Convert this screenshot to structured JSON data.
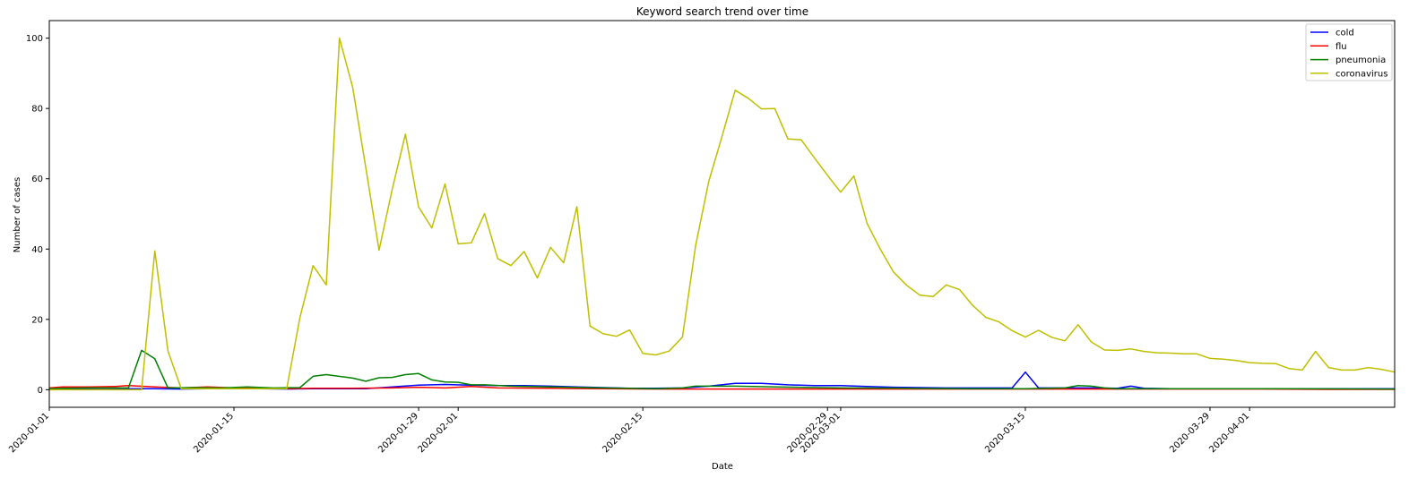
{
  "chart_data": {
    "type": "line",
    "title": "Keyword search trend over time",
    "xlabel": "Date",
    "ylabel": "Number of cases",
    "xlim": [
      "2020-01-01",
      "2020-04-12"
    ],
    "ylim": [
      -5,
      105
    ],
    "yticks": [
      0,
      20,
      40,
      60,
      80,
      100
    ],
    "xticks": [
      "2020-01-01",
      "2020-01-15",
      "2020-01-29",
      "2020-02-01",
      "2020-02-15",
      "2020-02-29",
      "2020-03-01",
      "2020-03-15",
      "2020-03-29",
      "2020-04-01"
    ],
    "grid": false,
    "legend_position": "top-right",
    "series": [
      {
        "name": "cold",
        "color": "#0000ff",
        "x": [
          "2020-01-01",
          "2020-01-03",
          "2020-01-05",
          "2020-01-07",
          "2020-01-09",
          "2020-01-11",
          "2020-01-13",
          "2020-01-15",
          "2020-01-17",
          "2020-01-19",
          "2020-01-21",
          "2020-01-23",
          "2020-01-25",
          "2020-01-27",
          "2020-01-29",
          "2020-01-31",
          "2020-02-02",
          "2020-02-04",
          "2020-02-06",
          "2020-02-08",
          "2020-02-10",
          "2020-02-12",
          "2020-02-14",
          "2020-02-16",
          "2020-02-18",
          "2020-02-20",
          "2020-02-22",
          "2020-02-24",
          "2020-02-26",
          "2020-02-28",
          "2020-03-01",
          "2020-03-03",
          "2020-03-05",
          "2020-03-07",
          "2020-03-09",
          "2020-03-11",
          "2020-03-13",
          "2020-03-14",
          "2020-03-15",
          "2020-03-16",
          "2020-03-18",
          "2020-03-20",
          "2020-03-22",
          "2020-03-23",
          "2020-03-24",
          "2020-03-26",
          "2020-03-28",
          "2020-03-30",
          "2020-04-01",
          "2020-04-03",
          "2020-04-05",
          "2020-04-07",
          "2020-04-09",
          "2020-04-12"
        ],
        "y": [
          0.3,
          0.3,
          0.4,
          0.3,
          0.3,
          0.2,
          0.3,
          0.3,
          0.3,
          0.2,
          0.3,
          0.3,
          0.3,
          0.8,
          1.3,
          1.5,
          1.3,
          1.2,
          1.2,
          1.0,
          0.8,
          0.6,
          0.4,
          0.4,
          0.5,
          1.0,
          1.8,
          1.8,
          1.4,
          1.2,
          1.2,
          0.9,
          0.7,
          0.6,
          0.5,
          0.5,
          0.5,
          0.5,
          5.0,
          0.5,
          0.5,
          0.5,
          0.4,
          1.0,
          0.4,
          0.3,
          0.3,
          0.3,
          0.3,
          0.3,
          0.3,
          0.3,
          0.3,
          0.3
        ]
      },
      {
        "name": "flu",
        "color": "#ff0000",
        "x": [
          "2020-01-01",
          "2020-01-02",
          "2020-01-04",
          "2020-01-06",
          "2020-01-07",
          "2020-01-09",
          "2020-01-11",
          "2020-01-13",
          "2020-01-15",
          "2020-01-17",
          "2020-01-19",
          "2020-01-21",
          "2020-01-24",
          "2020-01-27",
          "2020-01-29",
          "2020-01-31",
          "2020-02-02",
          "2020-02-04",
          "2020-02-08",
          "2020-02-12",
          "2020-02-16",
          "2020-02-20",
          "2020-02-24",
          "2020-02-28",
          "2020-03-03",
          "2020-03-08",
          "2020-03-13",
          "2020-03-18",
          "2020-03-23",
          "2020-03-28",
          "2020-04-02",
          "2020-04-07",
          "2020-04-12"
        ],
        "y": [
          0.5,
          0.8,
          0.8,
          0.9,
          1.2,
          0.8,
          0.5,
          0.8,
          0.5,
          0.4,
          0.3,
          0.4,
          0.4,
          0.5,
          0.7,
          0.5,
          0.9,
          0.5,
          0.4,
          0.3,
          0.2,
          0.2,
          0.2,
          0.2,
          0.2,
          0.2,
          0.2,
          0.2,
          0.2,
          0.2,
          0.2,
          0.1,
          0.1
        ]
      },
      {
        "name": "pneumonia",
        "color": "#008000",
        "x": [
          "2020-01-01",
          "2020-01-02",
          "2020-01-04",
          "2020-01-06",
          "2020-01-07",
          "2020-01-08",
          "2020-01-09",
          "2020-01-10",
          "2020-01-12",
          "2020-01-14",
          "2020-01-16",
          "2020-01-18",
          "2020-01-20",
          "2020-01-21",
          "2020-01-22",
          "2020-01-24",
          "2020-01-25",
          "2020-01-26",
          "2020-01-27",
          "2020-01-28",
          "2020-01-29",
          "2020-01-30",
          "2020-01-31",
          "2020-02-01",
          "2020-02-02",
          "2020-02-03",
          "2020-02-05",
          "2020-02-08",
          "2020-02-12",
          "2020-02-16",
          "2020-02-18",
          "2020-02-19",
          "2020-02-20",
          "2020-02-22",
          "2020-02-25",
          "2020-03-01",
          "2020-03-06",
          "2020-03-11",
          "2020-03-15",
          "2020-03-18",
          "2020-03-19",
          "2020-03-20",
          "2020-03-21",
          "2020-03-22",
          "2020-03-25",
          "2020-03-30",
          "2020-04-04",
          "2020-04-12"
        ],
        "y": [
          0.3,
          0.4,
          0.5,
          0.5,
          0.5,
          11.2,
          8.8,
          0.5,
          0.6,
          0.5,
          0.8,
          0.5,
          0.6,
          3.8,
          4.3,
          3.3,
          2.4,
          3.4,
          3.5,
          4.3,
          4.6,
          2.8,
          2.2,
          2.1,
          1.4,
          1.4,
          1.0,
          0.8,
          0.5,
          0.3,
          0.5,
          1.0,
          1.0,
          1.0,
          0.8,
          0.5,
          0.4,
          0.3,
          0.3,
          0.5,
          1.2,
          1.0,
          0.5,
          0.3,
          0.3,
          0.3,
          0.3,
          0.2
        ]
      },
      {
        "name": "coronavirus",
        "color": "#bfbf00",
        "x": [
          "2020-01-01",
          "2020-01-03",
          "2020-01-05",
          "2020-01-07",
          "2020-01-08",
          "2020-01-09",
          "2020-01-10",
          "2020-01-11",
          "2020-01-12",
          "2020-01-14",
          "2020-01-16",
          "2020-01-18",
          "2020-01-19",
          "2020-01-20",
          "2020-01-21",
          "2020-01-22",
          "2020-01-23",
          "2020-01-24",
          "2020-01-25",
          "2020-01-26",
          "2020-01-27",
          "2020-01-28",
          "2020-01-29",
          "2020-01-30",
          "2020-01-31",
          "2020-02-01",
          "2020-02-02",
          "2020-02-03",
          "2020-02-04",
          "2020-02-05",
          "2020-02-06",
          "2020-02-07",
          "2020-02-08",
          "2020-02-09",
          "2020-02-10",
          "2020-02-11",
          "2020-02-12",
          "2020-02-13",
          "2020-02-14",
          "2020-02-15",
          "2020-02-16",
          "2020-02-17",
          "2020-02-18",
          "2020-02-19",
          "2020-02-20",
          "2020-02-21",
          "2020-02-22",
          "2020-02-23",
          "2020-02-24",
          "2020-02-25",
          "2020-02-26",
          "2020-02-27",
          "2020-02-28",
          "2020-02-29",
          "2020-03-01",
          "2020-03-02",
          "2020-03-03",
          "2020-03-04",
          "2020-03-05",
          "2020-03-06",
          "2020-03-07",
          "2020-03-08",
          "2020-03-09",
          "2020-03-10",
          "2020-03-11",
          "2020-03-12",
          "2020-03-13",
          "2020-03-14",
          "2020-03-15",
          "2020-03-16",
          "2020-03-17",
          "2020-03-18",
          "2020-03-19",
          "2020-03-20",
          "2020-03-21",
          "2020-03-22",
          "2020-03-23",
          "2020-03-24",
          "2020-03-25",
          "2020-03-26",
          "2020-03-27",
          "2020-03-28",
          "2020-03-29",
          "2020-03-30",
          "2020-03-31",
          "2020-04-01",
          "2020-04-02",
          "2020-04-03",
          "2020-04-04",
          "2020-04-05",
          "2020-04-06",
          "2020-04-07",
          "2020-04-08",
          "2020-04-09",
          "2020-04-10",
          "2020-04-11",
          "2020-04-12"
        ],
        "y": [
          0.0,
          0.0,
          0.0,
          0.0,
          0.0,
          39.5,
          11.0,
          0.3,
          0.3,
          0.3,
          0.3,
          0.3,
          0.3,
          20.5,
          35.3,
          29.8,
          100.0,
          86.0,
          63.0,
          39.7,
          57.0,
          72.7,
          52.0,
          46.0,
          58.5,
          41.5,
          41.8,
          50.1,
          37.3,
          35.3,
          39.3,
          31.8,
          40.5,
          36.1,
          52.1,
          18.1,
          15.9,
          15.2,
          17.0,
          10.3,
          9.9,
          11.0,
          15.0,
          41.0,
          59.3,
          72.0,
          85.2,
          82.9,
          79.9,
          80.0,
          71.3,
          71.1,
          66.0,
          61.0,
          56.2,
          60.8,
          47.3,
          40.0,
          33.5,
          29.7,
          26.9,
          26.5,
          29.8,
          28.5,
          24.0,
          20.6,
          19.3,
          16.8,
          15.0,
          16.9,
          14.9,
          13.9,
          18.5,
          13.6,
          11.3,
          11.2,
          11.6,
          10.9,
          10.5,
          10.4,
          10.2,
          10.2,
          8.9,
          8.7,
          8.3,
          7.7,
          7.5,
          7.4,
          6.0,
          5.6,
          10.9,
          6.3,
          5.6,
          5.6,
          6.3,
          5.8,
          5.0
        ]
      }
    ]
  }
}
